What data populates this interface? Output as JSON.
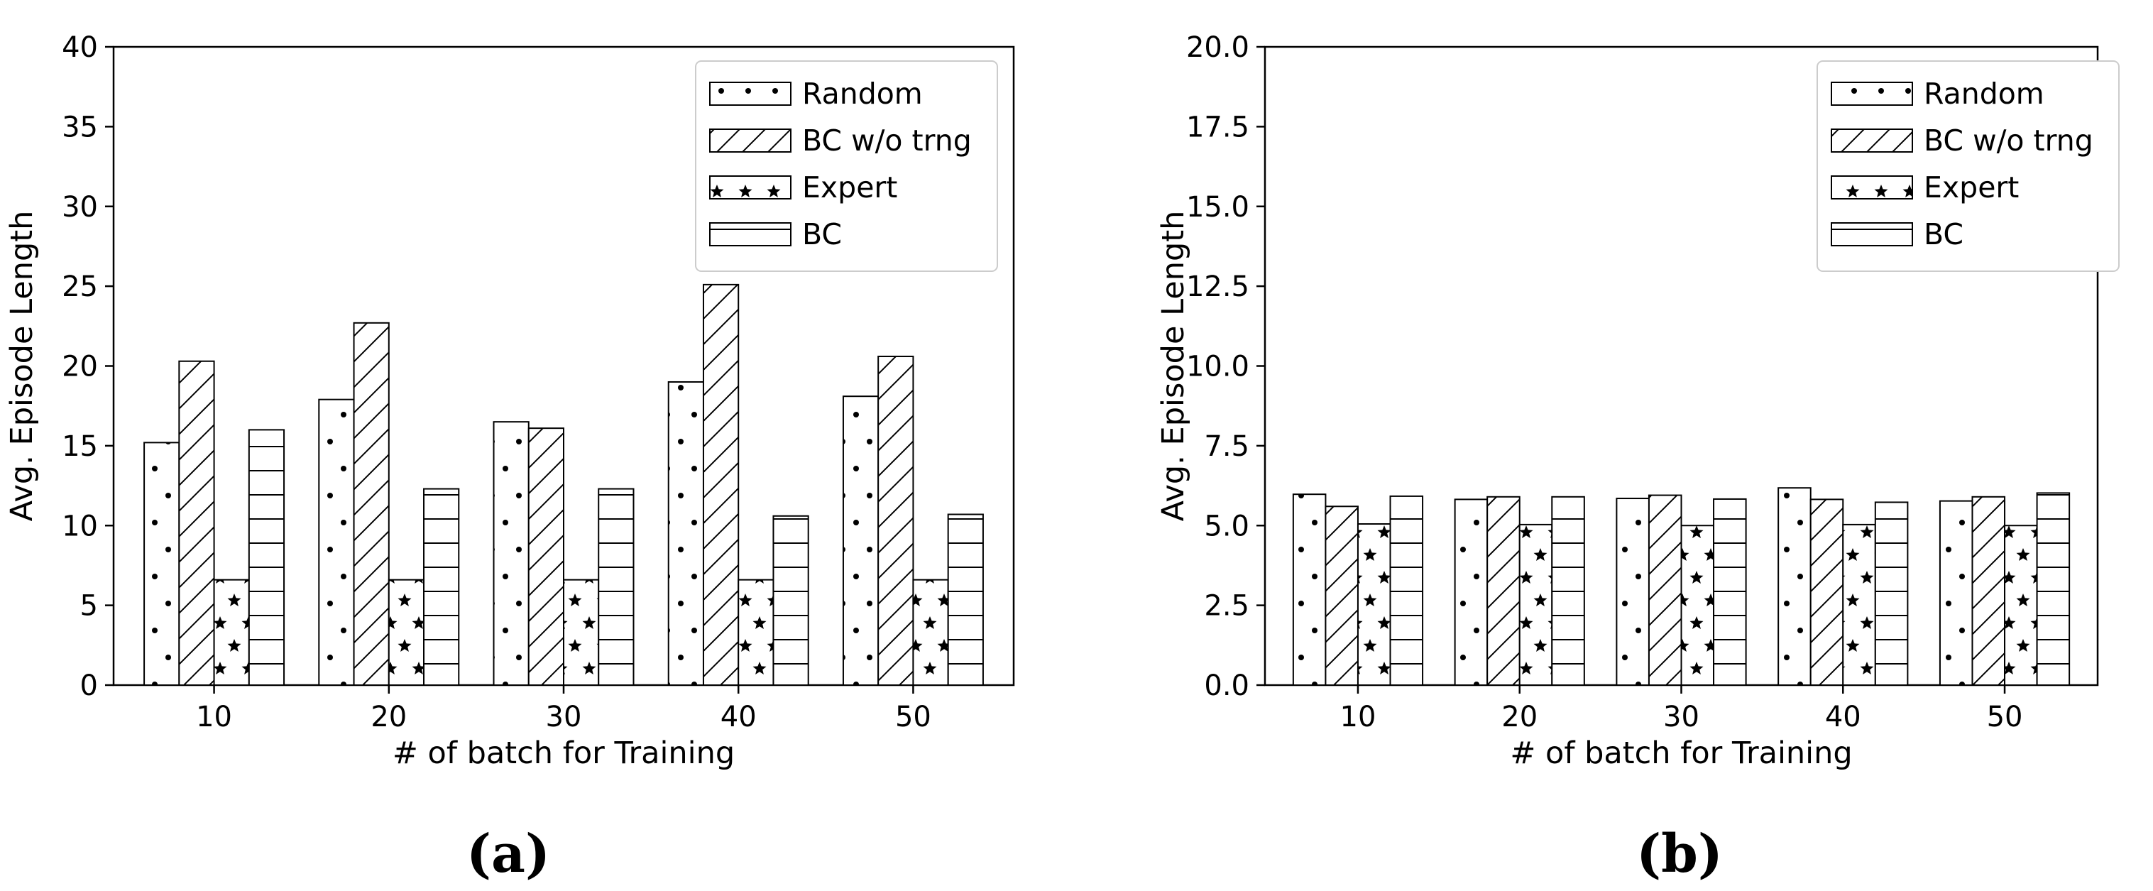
{
  "colors": {
    "bar_fill": "#ffffff",
    "bar_stroke": "#000000",
    "pattern": "#000000"
  },
  "series_patterns": [
    "dots",
    "diagonal-hatch",
    "stars",
    "horizontal-lines"
  ],
  "chart_data": [
    {
      "type": "bar",
      "panel_label": "(a)",
      "xlabel": "# of batch for Training",
      "ylabel": "Avg. Episode Length",
      "categories": [
        "10",
        "20",
        "30",
        "40",
        "50"
      ],
      "ylim": [
        0,
        40
      ],
      "yticks": [
        "0",
        "5",
        "10",
        "15",
        "20",
        "25",
        "30",
        "35",
        "40"
      ],
      "grid": false,
      "legend_position": "top-right",
      "series": [
        {
          "name": "Random",
          "values": [
            15.2,
            17.9,
            16.5,
            19.0,
            18.1
          ]
        },
        {
          "name": "BC w/o trng",
          "values": [
            20.3,
            22.7,
            16.1,
            25.1,
            20.6
          ]
        },
        {
          "name": "Expert",
          "values": [
            6.6,
            6.6,
            6.6,
            6.6,
            6.6
          ]
        },
        {
          "name": "BC",
          "values": [
            16.0,
            12.3,
            12.3,
            10.6,
            10.7
          ]
        }
      ]
    },
    {
      "type": "bar",
      "panel_label": "(b)",
      "xlabel": "# of batch for Training",
      "ylabel": "Avg. Episode Length",
      "categories": [
        "10",
        "20",
        "30",
        "40",
        "50"
      ],
      "ylim": [
        0,
        20
      ],
      "yticks": [
        "0.0",
        "2.5",
        "5.0",
        "7.5",
        "10.0",
        "12.5",
        "15.0",
        "17.5",
        "20.0"
      ],
      "grid": false,
      "legend_position": "top-right",
      "series": [
        {
          "name": "Random",
          "values": [
            5.98,
            5.82,
            5.85,
            6.18,
            5.77
          ]
        },
        {
          "name": "BC w/o trng",
          "values": [
            5.6,
            5.9,
            5.95,
            5.82,
            5.9
          ]
        },
        {
          "name": "Expert",
          "values": [
            5.05,
            5.03,
            5.0,
            5.03,
            5.0
          ]
        },
        {
          "name": "BC",
          "values": [
            5.92,
            5.9,
            5.83,
            5.73,
            6.02
          ]
        }
      ]
    }
  ]
}
